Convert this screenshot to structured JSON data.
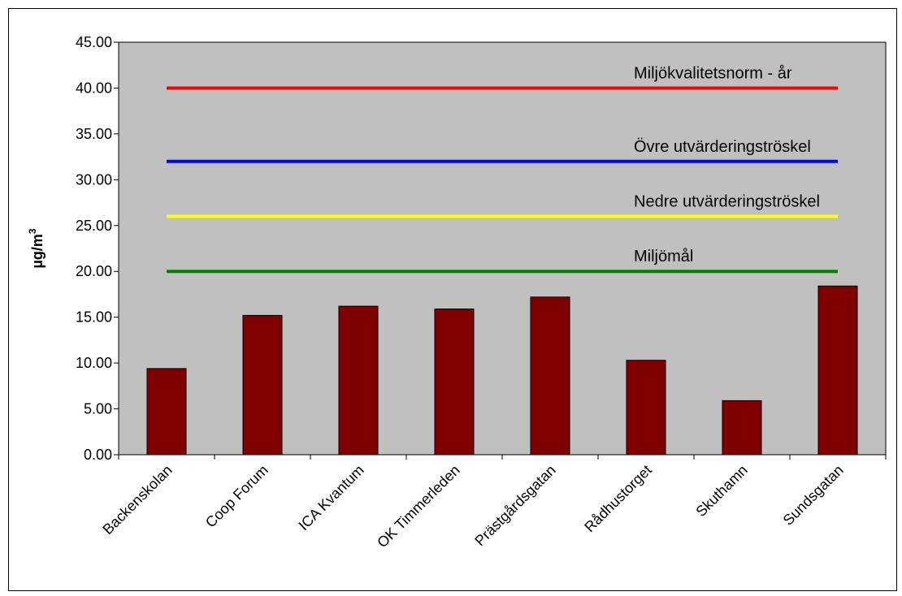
{
  "chart_data": {
    "type": "bar",
    "ylabel": "µg/m",
    "ylabel_superscript": "3",
    "ylim": [
      0,
      45
    ],
    "ytick_step": 5,
    "grid": false,
    "categories": [
      "Backenskolan",
      "Coop Forum",
      "ICA Kvantum",
      "OK Timmerleden",
      "Prästgårdsgatan",
      "Rådhustorget",
      "Skuthamn",
      "Sundsgatan"
    ],
    "values": [
      9.4,
      15.2,
      16.2,
      15.9,
      17.2,
      10.3,
      5.9,
      18.4
    ],
    "reference_lines": [
      {
        "label": "Miljökvalitetsnorm - år",
        "value": 40,
        "color": "#ff0000"
      },
      {
        "label": "Övre utvärderingströskel",
        "value": 32,
        "color": "#0000ff"
      },
      {
        "label": "Nedre utvärderingströskel",
        "value": 26,
        "color": "#ffff00"
      },
      {
        "label": "Miljömål",
        "value": 20,
        "color": "#008000"
      }
    ],
    "colors": {
      "bar": "#800000",
      "plot_background": "#c0c0c0"
    }
  }
}
